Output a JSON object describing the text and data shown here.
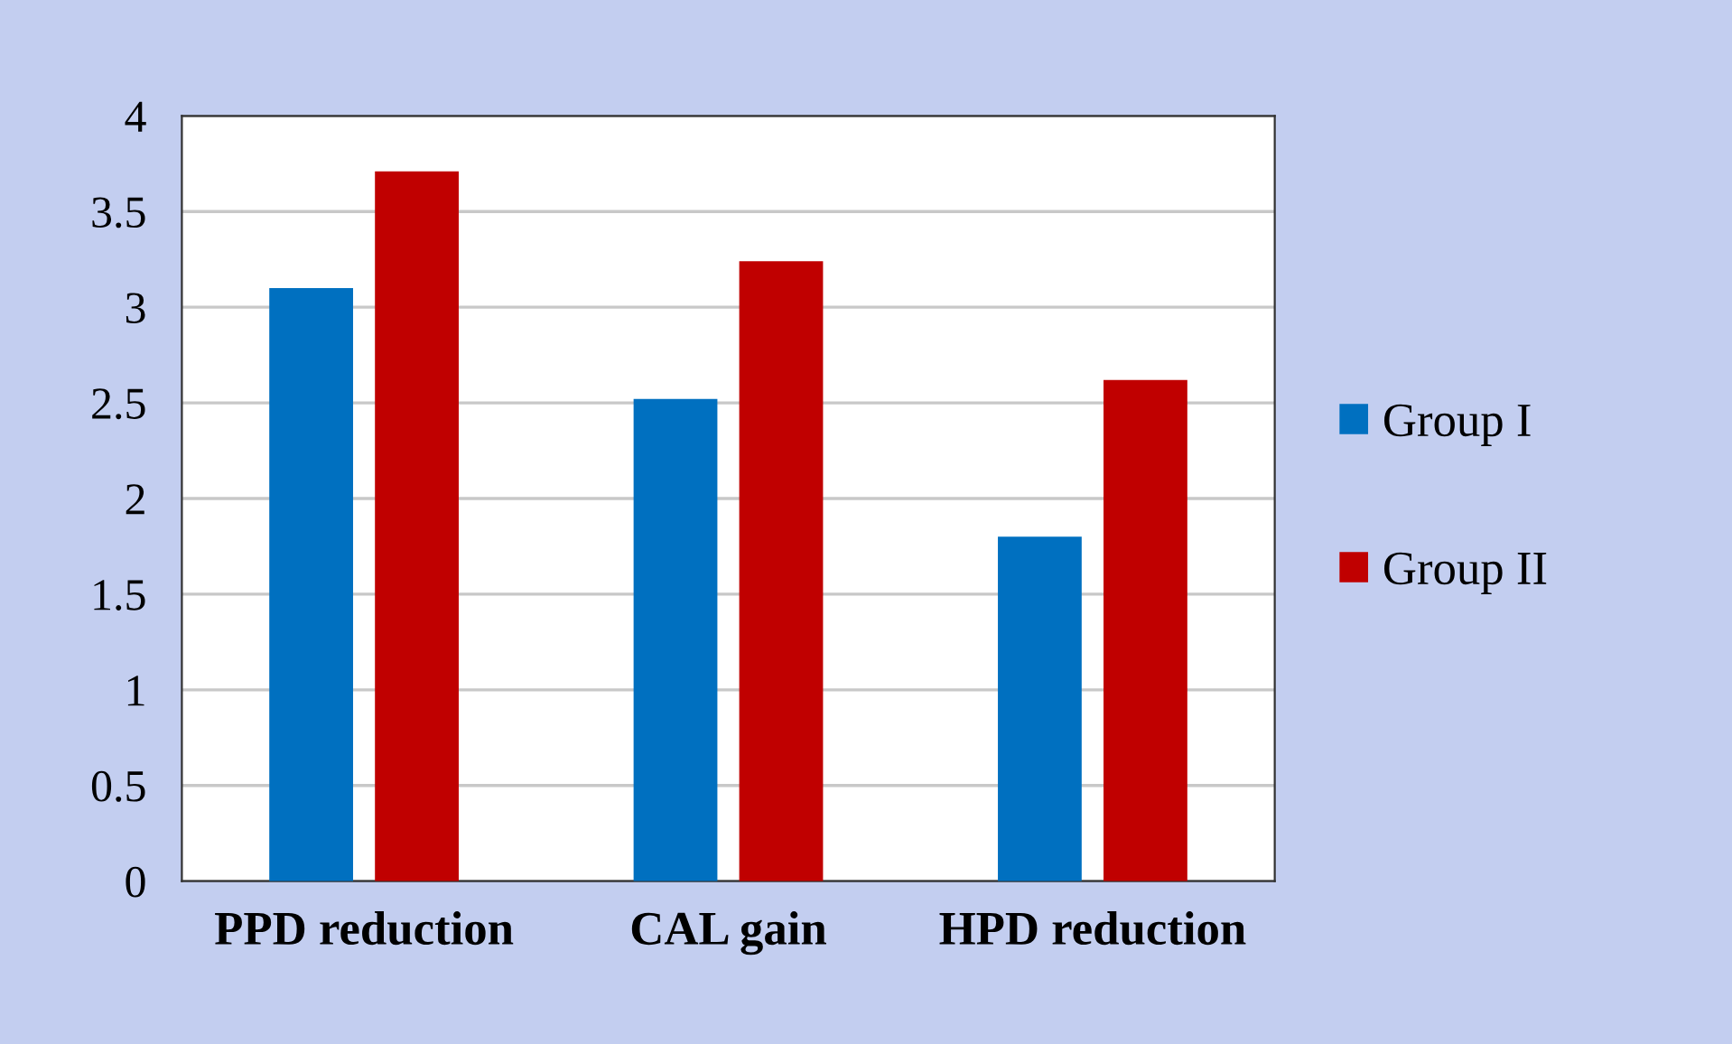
{
  "chart_data": {
    "type": "bar",
    "categories": [
      "PPD reduction",
      "CAL gain",
      "HPD reduction"
    ],
    "series": [
      {
        "name": "Group I",
        "color": "#0070c0",
        "values": [
          3.1,
          2.52,
          1.8
        ]
      },
      {
        "name": "Group II",
        "color": "#c00000",
        "values": [
          3.71,
          3.24,
          2.62
        ]
      }
    ],
    "ylim": [
      0,
      4
    ],
    "yticks": [
      0,
      0.5,
      1,
      1.5,
      2,
      2.5,
      3,
      3.5,
      4
    ],
    "grid": "y",
    "legend": "right"
  }
}
